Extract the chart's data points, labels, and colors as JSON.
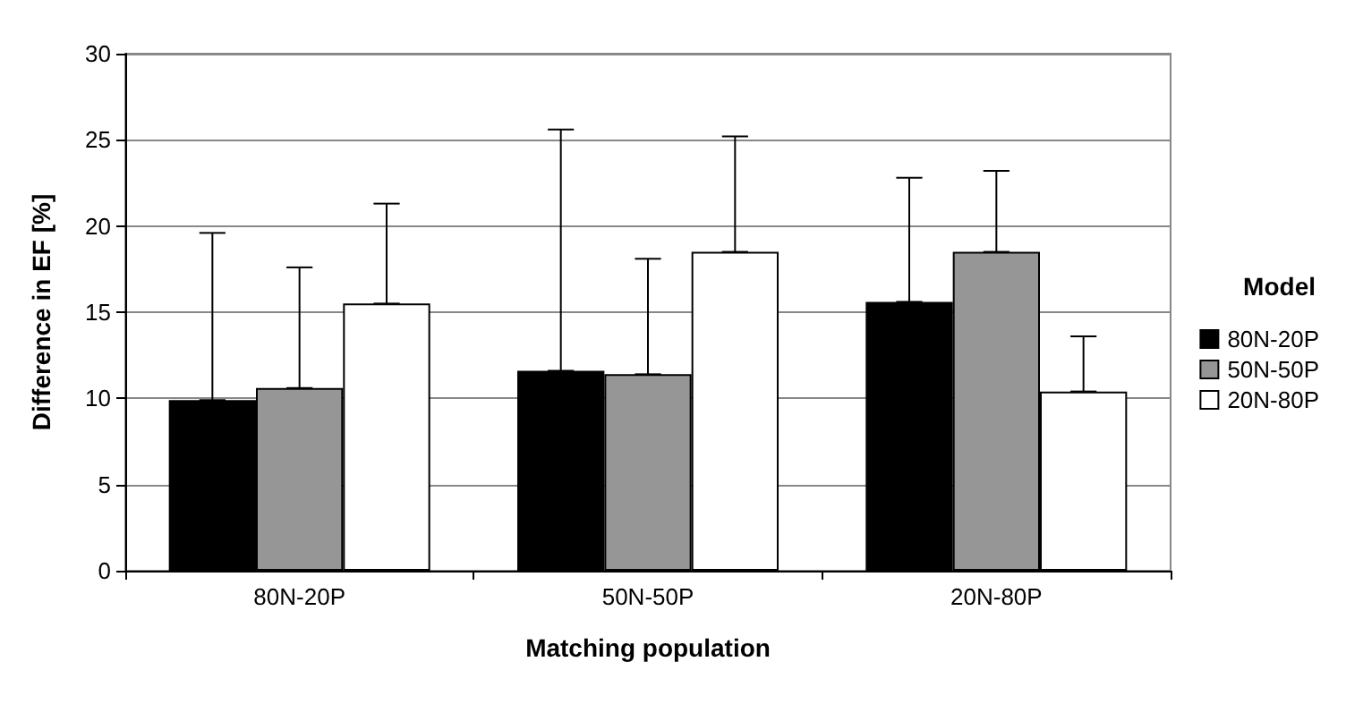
{
  "chart_data": {
    "type": "bar",
    "xlabel": "Matching population",
    "ylabel": "Difference in EF [%]",
    "legend_title": "Model",
    "legend": "right",
    "grid": "y",
    "categories": [
      "80N-20P",
      "50N-50P",
      "20N-80P"
    ],
    "ylim": [
      0,
      30
    ],
    "yticks": [
      0,
      5,
      10,
      15,
      20,
      25,
      30
    ],
    "series": [
      {
        "name": "80N-20P",
        "color": "#000000",
        "values": [
          9.9,
          11.6,
          15.6
        ],
        "errors": [
          [
            9.9,
            19.6
          ],
          [
            11.6,
            25.6
          ],
          [
            15.6,
            22.8
          ]
        ]
      },
      {
        "name": "50N-50P",
        "color": "#969696",
        "values": [
          10.6,
          11.4,
          18.5
        ],
        "errors": [
          [
            10.6,
            17.6
          ],
          [
            11.4,
            18.1
          ],
          [
            18.5,
            23.2
          ]
        ]
      },
      {
        "name": "20N-80P",
        "color": "#ffffff",
        "values": [
          15.5,
          18.5,
          10.4
        ],
        "errors": [
          [
            15.5,
            21.3
          ],
          [
            18.5,
            25.2
          ],
          [
            10.4,
            13.6
          ]
        ]
      }
    ]
  }
}
